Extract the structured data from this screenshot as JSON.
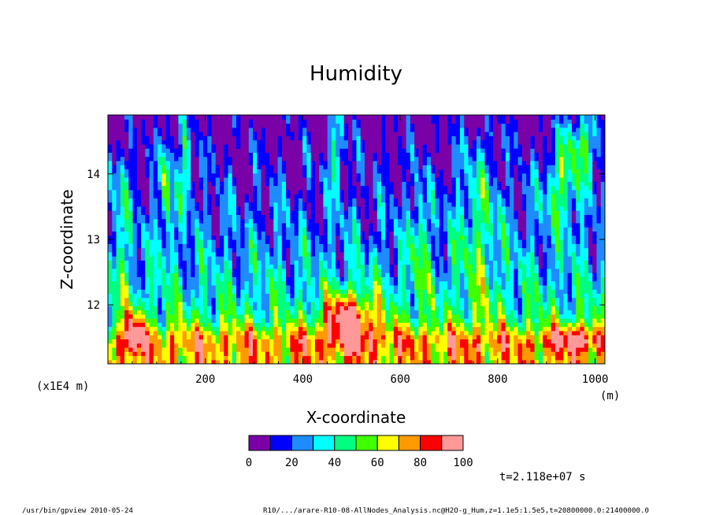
{
  "chart_data": {
    "type": "heatmap",
    "title": "Humidity",
    "xlabel": "X-coordinate",
    "ylabel": "Z-coordinate",
    "x_unit": "(m)",
    "y_unit": "(x1E4 m)",
    "xlim": [
      0,
      1020
    ],
    "ylim": [
      11.1,
      14.9
    ],
    "x_ticks": [
      200,
      400,
      600,
      800,
      1000
    ],
    "y_ticks": [
      12,
      13,
      14
    ],
    "colorbar": {
      "levels": [
        0,
        10,
        20,
        30,
        40,
        50,
        60,
        70,
        80,
        90,
        100
      ],
      "tick_labels": [
        0,
        20,
        40,
        60,
        80,
        100
      ],
      "colors": [
        "#7a00a8",
        "#0000ff",
        "#1e8cff",
        "#00ffff",
        "#00ff80",
        "#40ff00",
        "#ffff00",
        "#ff9900",
        "#ff0000",
        "#ff9999"
      ]
    },
    "time_label": "t=2.118e+07 s",
    "footer_left": "/usr/bin/gpview  2010-05-24",
    "footer_right": "R10/.../arare-R10-08-AllNodes_Analysis.nc@H2O-g_Hum,z=1.1e5:1.5e5,t=20800000.0:21400000.0"
  }
}
